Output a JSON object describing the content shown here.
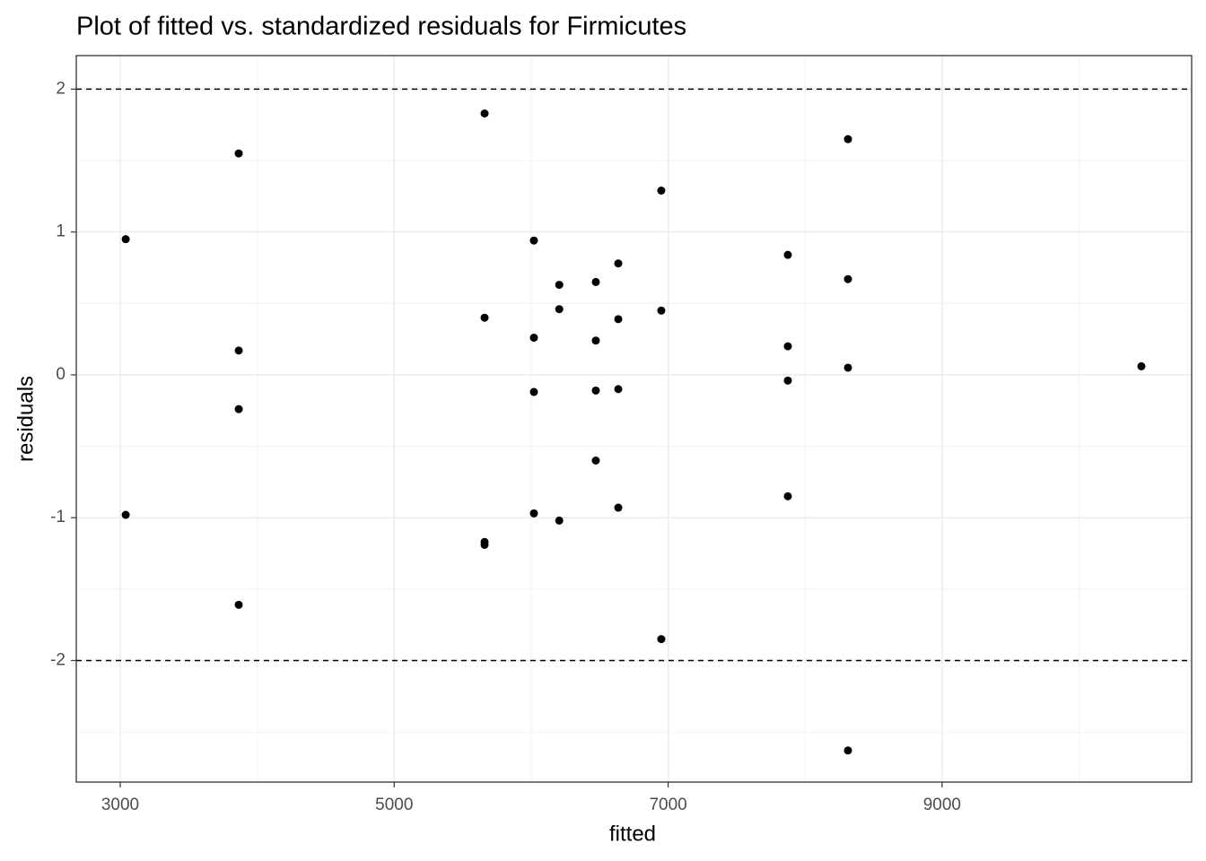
{
  "chart_data": {
    "type": "scatter",
    "title": "Plot of fitted vs. standardized residuals for Firmicutes",
    "x_label": "fitted",
    "y_label": "residuals",
    "x": [
      3040,
      3040,
      3865,
      3865,
      3865,
      3865,
      5660,
      5660,
      5660,
      5660,
      6020,
      6020,
      6020,
      6020,
      6205,
      6205,
      6205,
      6472,
      6472,
      6472,
      6472,
      6636,
      6636,
      6636,
      6636,
      6950,
      6950,
      6950,
      7874,
      7874,
      7874,
      7874,
      8313,
      8313,
      8313,
      8313,
      10455
    ],
    "values": [
      0.95,
      -0.98,
      1.55,
      0.17,
      -0.24,
      -1.61,
      1.83,
      0.4,
      -1.17,
      -1.19,
      0.94,
      0.26,
      -0.12,
      -0.97,
      0.63,
      0.46,
      -1.02,
      0.65,
      0.24,
      -0.11,
      -0.6,
      0.78,
      0.39,
      -0.1,
      -0.93,
      1.29,
      0.45,
      -1.85,
      0.84,
      0.2,
      -0.04,
      -0.85,
      1.65,
      0.67,
      0.05,
      -2.63,
      0.06
    ],
    "color": "#000000",
    "xlim": [
      2679,
      10822
    ],
    "ylim": [
      -2.851,
      2.235
    ],
    "xticks": [
      3000,
      5000,
      7000,
      9000
    ],
    "yticks": [
      -2,
      -1,
      0,
      1,
      2
    ],
    "minor_xticks": [
      4000,
      6000,
      8000,
      10000
    ],
    "minor_yticks": [
      -2.5,
      -1.5,
      -0.5,
      0.5,
      1.5
    ],
    "hlines": [
      -2,
      2
    ],
    "grid": true
  }
}
